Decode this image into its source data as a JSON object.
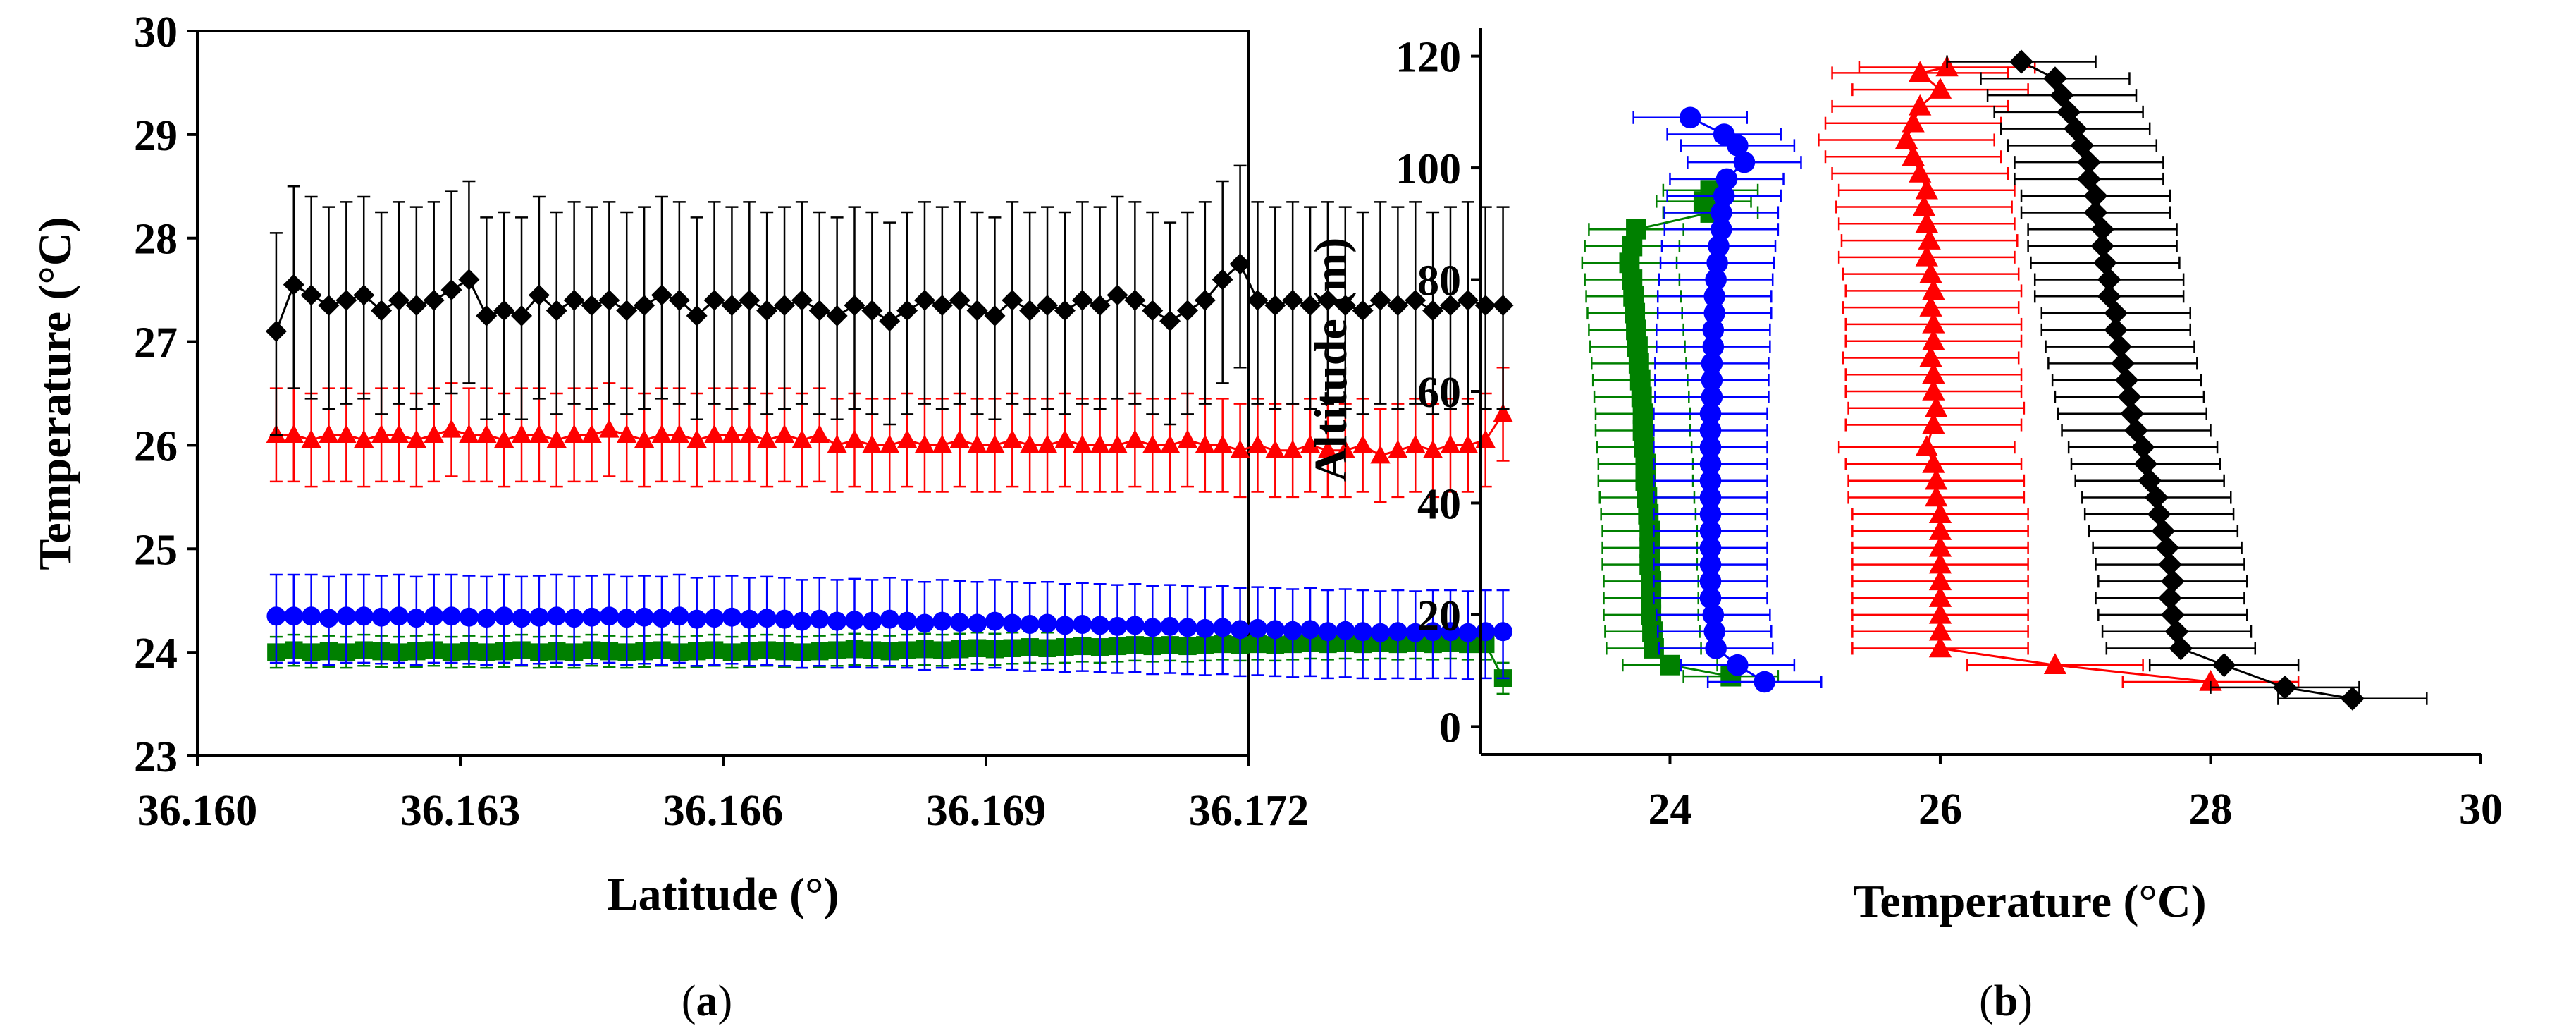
{
  "colors": {
    "black": "#000000",
    "red": "#ff0000",
    "blue": "#0000ff",
    "green": "#008000"
  },
  "chart_data": [
    {
      "panel": "a",
      "type": "scatter",
      "title": "",
      "xlabel": "Latitude (°)",
      "ylabel": "Temperature (°C)",
      "xlim": [
        36.16,
        36.172
      ],
      "ylim": [
        23,
        30
      ],
      "xticks": [
        "36.160",
        "36.163",
        "36.166",
        "36.169",
        "36.172"
      ],
      "yticks": [
        "23",
        "24",
        "25",
        "26",
        "27",
        "28",
        "29",
        "30"
      ],
      "grid": false,
      "x_start": 36.1609,
      "x_step": 0.0002,
      "series": [
        {
          "name": "Black (diamond)",
          "marker": "diamond",
          "color": "#000000",
          "err_up": 0.95,
          "err_down": 1.0,
          "values": [
            27.1,
            27.55,
            27.45,
            27.35,
            27.4,
            27.45,
            27.3,
            27.4,
            27.35,
            27.4,
            27.5,
            27.6,
            27.25,
            27.3,
            27.25,
            27.45,
            27.3,
            27.4,
            27.35,
            27.4,
            27.3,
            27.35,
            27.45,
            27.4,
            27.25,
            27.4,
            27.35,
            27.4,
            27.3,
            27.35,
            27.4,
            27.3,
            27.25,
            27.35,
            27.3,
            27.2,
            27.3,
            27.4,
            27.35,
            27.4,
            27.3,
            27.25,
            27.4,
            27.3,
            27.35,
            27.3,
            27.4,
            27.35,
            27.45,
            27.4,
            27.3,
            27.2,
            27.3,
            27.4,
            27.6,
            27.75,
            27.4,
            27.35,
            27.4,
            27.35,
            27.4,
            27.35,
            27.3,
            27.4,
            27.35,
            27.4,
            27.3,
            27.35,
            27.4,
            27.35,
            27.35
          ]
        },
        {
          "name": "Red (triangle)",
          "marker": "triangle",
          "color": "#ff0000",
          "err_up": 0.45,
          "err_down": 0.45,
          "values": [
            26.1,
            26.1,
            26.05,
            26.1,
            26.1,
            26.05,
            26.1,
            26.1,
            26.05,
            26.1,
            26.15,
            26.1,
            26.1,
            26.05,
            26.1,
            26.1,
            26.05,
            26.1,
            26.1,
            26.15,
            26.1,
            26.05,
            26.1,
            26.1,
            26.05,
            26.1,
            26.1,
            26.1,
            26.05,
            26.1,
            26.05,
            26.1,
            26.0,
            26.05,
            26.0,
            26.0,
            26.05,
            26.0,
            26.0,
            26.05,
            26.0,
            26.0,
            26.05,
            26.0,
            26.0,
            26.05,
            26.0,
            26.0,
            26.0,
            26.05,
            26.0,
            26.0,
            26.05,
            26.0,
            26.0,
            25.95,
            26.0,
            25.95,
            25.95,
            26.0,
            25.95,
            25.95,
            26.0,
            25.9,
            25.95,
            26.0,
            25.95,
            26.0,
            26.0,
            26.05,
            26.3
          ]
        },
        {
          "name": "Blue (circle)",
          "marker": "circle",
          "color": "#0000ff",
          "err_up": 0.4,
          "err_down": 0.45,
          "values": [
            24.35,
            24.35,
            24.35,
            24.33,
            24.35,
            24.35,
            24.34,
            24.35,
            24.33,
            24.35,
            24.35,
            24.34,
            24.33,
            24.35,
            24.33,
            24.34,
            24.35,
            24.33,
            24.34,
            24.35,
            24.33,
            24.34,
            24.33,
            24.35,
            24.32,
            24.33,
            24.34,
            24.32,
            24.33,
            24.32,
            24.3,
            24.32,
            24.3,
            24.31,
            24.3,
            24.32,
            24.3,
            24.28,
            24.3,
            24.29,
            24.28,
            24.3,
            24.28,
            24.27,
            24.28,
            24.26,
            24.27,
            24.26,
            24.25,
            24.26,
            24.24,
            24.25,
            24.24,
            24.23,
            24.24,
            24.22,
            24.23,
            24.22,
            24.21,
            24.22,
            24.2,
            24.21,
            24.2,
            24.19,
            24.2,
            24.19,
            24.2,
            24.2,
            24.19,
            24.2,
            24.2
          ]
        },
        {
          "name": "Green (square)",
          "marker": "square",
          "color": "#008000",
          "err_up": 0.15,
          "err_down": 0.15,
          "values": [
            24.0,
            24.02,
            24.0,
            24.01,
            24.0,
            24.02,
            24.01,
            24.0,
            24.01,
            24.02,
            24.0,
            24.01,
            24.0,
            24.01,
            24.02,
            24.0,
            24.01,
            24.0,
            24.02,
            24.01,
            24.0,
            24.01,
            24.02,
            24.0,
            24.01,
            24.02,
            24.0,
            24.01,
            24.02,
            24.01,
            24.0,
            24.01,
            24.02,
            24.03,
            24.02,
            24.01,
            24.02,
            24.03,
            24.02,
            24.03,
            24.04,
            24.03,
            24.04,
            24.05,
            24.04,
            24.05,
            24.06,
            24.05,
            24.06,
            24.07,
            24.06,
            24.07,
            24.06,
            24.07,
            24.08,
            24.07,
            24.08,
            24.07,
            24.08,
            24.09,
            24.08,
            24.09,
            24.08,
            24.09,
            24.08,
            24.09,
            24.08,
            24.09,
            24.08,
            24.08,
            23.75
          ]
        }
      ]
    },
    {
      "panel": "b",
      "type": "scatter",
      "title": "",
      "xlabel": "Temperature (°C)",
      "ylabel": "Altitude (m)",
      "xlim": [
        22.6,
        30
      ],
      "ylim": [
        -5,
        125
      ],
      "xticks": [
        "24",
        "26",
        "28",
        "30"
      ],
      "xtick_values": [
        24,
        26,
        28,
        30
      ],
      "yticks": [
        "0",
        "20",
        "40",
        "60",
        "80",
        "100",
        "120"
      ],
      "ytick_values": [
        0,
        20,
        40,
        60,
        80,
        100,
        120
      ],
      "grid": false,
      "series": [
        {
          "name": "Black (diamond)",
          "marker": "diamond",
          "color": "#000000",
          "err": 0.55,
          "points": [
            [
              26.6,
              119
            ],
            [
              26.85,
              116
            ],
            [
              26.9,
              113
            ],
            [
              26.95,
              110
            ],
            [
              27.0,
              107
            ],
            [
              27.05,
              104
            ],
            [
              27.1,
              101
            ],
            [
              27.1,
              98
            ],
            [
              27.15,
              95
            ],
            [
              27.15,
              92
            ],
            [
              27.2,
              89
            ],
            [
              27.2,
              86
            ],
            [
              27.22,
              83
            ],
            [
              27.25,
              80
            ],
            [
              27.25,
              77
            ],
            [
              27.3,
              74
            ],
            [
              27.3,
              71
            ],
            [
              27.33,
              68
            ],
            [
              27.35,
              65
            ],
            [
              27.38,
              62
            ],
            [
              27.4,
              59
            ],
            [
              27.42,
              56
            ],
            [
              27.45,
              53
            ],
            [
              27.5,
              50
            ],
            [
              27.52,
              47
            ],
            [
              27.55,
              44
            ],
            [
              27.6,
              41
            ],
            [
              27.62,
              38
            ],
            [
              27.65,
              35
            ],
            [
              27.68,
              32
            ],
            [
              27.7,
              29
            ],
            [
              27.72,
              26
            ],
            [
              27.7,
              23
            ],
            [
              27.72,
              20
            ],
            [
              27.75,
              17
            ],
            [
              27.78,
              14
            ],
            [
              28.1,
              11
            ],
            [
              28.55,
              7
            ],
            [
              29.05,
              5
            ]
          ]
        },
        {
          "name": "Red (triangle)",
          "marker": "triangle",
          "color": "#ff0000",
          "err": 0.65,
          "points": [
            [
              26.05,
              118
            ],
            [
              25.85,
              117
            ],
            [
              26.0,
              114
            ],
            [
              25.85,
              111
            ],
            [
              25.8,
              108
            ],
            [
              25.75,
              105
            ],
            [
              25.8,
              102
            ],
            [
              25.85,
              99
            ],
            [
              25.9,
              96
            ],
            [
              25.88,
              93
            ],
            [
              25.9,
              90
            ],
            [
              25.92,
              87
            ],
            [
              25.9,
              84
            ],
            [
              25.93,
              81
            ],
            [
              25.95,
              78
            ],
            [
              25.93,
              75
            ],
            [
              25.95,
              72
            ],
            [
              25.95,
              69
            ],
            [
              25.93,
              66
            ],
            [
              25.95,
              63
            ],
            [
              25.95,
              60
            ],
            [
              25.97,
              57
            ],
            [
              25.95,
              54
            ],
            [
              25.9,
              50
            ],
            [
              25.95,
              47
            ],
            [
              25.97,
              44
            ],
            [
              25.97,
              41
            ],
            [
              26.0,
              38
            ],
            [
              26.0,
              35
            ],
            [
              26.0,
              32
            ],
            [
              26.0,
              29
            ],
            [
              26.0,
              26
            ],
            [
              26.0,
              23
            ],
            [
              26.0,
              20
            ],
            [
              26.0,
              17
            ],
            [
              26.0,
              14
            ],
            [
              26.85,
              11
            ],
            [
              28.0,
              8
            ]
          ]
        },
        {
          "name": "Blue (circle)",
          "marker": "circle",
          "color": "#0000ff",
          "err": 0.42,
          "points": [
            [
              24.15,
              109
            ],
            [
              24.4,
              106
            ],
            [
              24.5,
              104
            ],
            [
              24.55,
              101
            ],
            [
              24.42,
              98
            ],
            [
              24.4,
              95
            ],
            [
              24.38,
              92
            ],
            [
              24.38,
              89
            ],
            [
              24.36,
              86
            ],
            [
              24.35,
              83
            ],
            [
              24.34,
              80
            ],
            [
              24.33,
              77
            ],
            [
              24.33,
              74
            ],
            [
              24.32,
              71
            ],
            [
              24.32,
              68
            ],
            [
              24.31,
              65
            ],
            [
              24.31,
              62
            ],
            [
              24.31,
              59
            ],
            [
              24.3,
              56
            ],
            [
              24.3,
              53
            ],
            [
              24.3,
              50
            ],
            [
              24.3,
              47
            ],
            [
              24.3,
              44
            ],
            [
              24.3,
              41
            ],
            [
              24.3,
              38
            ],
            [
              24.3,
              35
            ],
            [
              24.3,
              32
            ],
            [
              24.3,
              29
            ],
            [
              24.3,
              26
            ],
            [
              24.3,
              23
            ],
            [
              24.32,
              20
            ],
            [
              24.33,
              17
            ],
            [
              24.34,
              14
            ],
            [
              24.5,
              11
            ],
            [
              24.7,
              8
            ]
          ]
        },
        {
          "name": "Green (square)",
          "marker": "square",
          "color": "#008000",
          "err": 0.35,
          "points": [
            [
              24.3,
              96
            ],
            [
              24.25,
              94
            ],
            [
              24.3,
              92
            ],
            [
              23.75,
              89
            ],
            [
              23.72,
              86
            ],
            [
              23.7,
              83
            ],
            [
              23.72,
              80
            ],
            [
              23.73,
              77
            ],
            [
              23.74,
              74
            ],
            [
              23.75,
              71
            ],
            [
              23.76,
              68
            ],
            [
              23.77,
              65
            ],
            [
              23.78,
              62
            ],
            [
              23.79,
              59
            ],
            [
              23.8,
              56
            ],
            [
              23.8,
              53
            ],
            [
              23.81,
              50
            ],
            [
              23.82,
              47
            ],
            [
              23.82,
              44
            ],
            [
              23.83,
              41
            ],
            [
              23.84,
              38
            ],
            [
              23.85,
              35
            ],
            [
              23.85,
              32
            ],
            [
              23.85,
              29
            ],
            [
              23.86,
              26
            ],
            [
              23.86,
              23
            ],
            [
              23.86,
              20
            ],
            [
              23.87,
              17
            ],
            [
              23.88,
              14
            ],
            [
              24.0,
              11
            ],
            [
              24.45,
              9
            ]
          ]
        }
      ]
    }
  ],
  "panel_labels": {
    "a_open": "(",
    "a_letter": "a",
    "a_close": ")",
    "b_open": "(",
    "b_letter": "b",
    "b_close": ")"
  }
}
